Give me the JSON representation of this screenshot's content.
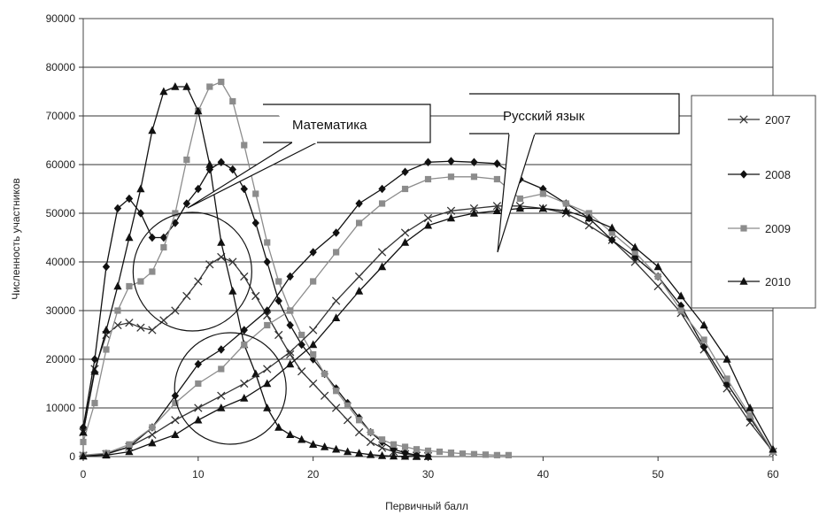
{
  "chart_data": {
    "type": "line",
    "title": "",
    "xlabel": "Первичный балл",
    "ylabel": "Численность участников",
    "xlim": [
      0,
      60
    ],
    "ylim": [
      0,
      90000
    ],
    "x_ticks": [
      0,
      10,
      20,
      30,
      40,
      50,
      60
    ],
    "y_ticks": [
      0,
      10000,
      20000,
      30000,
      40000,
      50000,
      60000,
      70000,
      80000,
      90000
    ],
    "grid": "horizontal",
    "legend_position": "right",
    "annotations": [
      "Математика",
      "Русский язык"
    ],
    "series": [
      {
        "name": "2007",
        "subject": "Математика",
        "color": "#333333",
        "marker": "x",
        "x": [
          0,
          1,
          2,
          3,
          4,
          5,
          6,
          7,
          8,
          9,
          10,
          11,
          12,
          13,
          14,
          15,
          16,
          17,
          18,
          19,
          20,
          21,
          22,
          23,
          24,
          25,
          26,
          27,
          28,
          29,
          30
        ],
        "y": [
          5000,
          18000,
          25000,
          27000,
          27500,
          26500,
          26000,
          28000,
          30000,
          33000,
          36000,
          39500,
          41000,
          40000,
          37000,
          33000,
          29000,
          25000,
          21000,
          17500,
          15000,
          12500,
          10000,
          7500,
          5000,
          3000,
          1800,
          1000,
          500,
          200,
          100
        ]
      },
      {
        "name": "2008",
        "subject": "Математика",
        "color": "#111111",
        "marker": "diamond",
        "x": [
          0,
          1,
          2,
          3,
          4,
          5,
          6,
          7,
          8,
          9,
          10,
          11,
          12,
          13,
          14,
          15,
          16,
          17,
          18,
          19,
          20,
          21,
          22,
          23,
          24,
          25,
          26,
          27,
          28,
          29,
          30
        ],
        "y": [
          6000,
          20000,
          39000,
          51000,
          53000,
          50000,
          45000,
          45000,
          48000,
          52000,
          55000,
          59000,
          60500,
          59000,
          55000,
          48000,
          40000,
          32000,
          27000,
          23000,
          20000,
          17000,
          14000,
          11000,
          8000,
          5000,
          3000,
          1500,
          800,
          300,
          100
        ]
      },
      {
        "name": "2009",
        "subject": "Математика",
        "color": "#8c8c8c",
        "marker": "square",
        "x": [
          0,
          1,
          2,
          3,
          4,
          5,
          6,
          7,
          8,
          9,
          10,
          11,
          12,
          13,
          14,
          15,
          16,
          17,
          18,
          19,
          20,
          21,
          22,
          23,
          24,
          25,
          26,
          27,
          28,
          29,
          30,
          31,
          32,
          33,
          34,
          35,
          36,
          37
        ],
        "y": [
          3000,
          11000,
          22000,
          30000,
          35000,
          36000,
          38000,
          43000,
          50000,
          61000,
          71000,
          76000,
          77000,
          73000,
          64000,
          54000,
          44000,
          36000,
          30000,
          25000,
          21000,
          17000,
          13500,
          10500,
          7500,
          5000,
          3500,
          2500,
          2000,
          1500,
          1200,
          1000,
          800,
          600,
          500,
          400,
          300,
          300
        ]
      },
      {
        "name": "2010",
        "subject": "Математика",
        "color": "#111111",
        "marker": "triangle",
        "x": [
          0,
          1,
          2,
          3,
          4,
          5,
          6,
          7,
          8,
          9,
          10,
          11,
          12,
          13,
          14,
          15,
          16,
          17,
          18,
          19,
          20,
          21,
          22,
          23,
          24,
          25,
          26,
          27,
          28,
          29,
          30
        ],
        "y": [
          5000,
          17500,
          26000,
          35000,
          45000,
          55000,
          67000,
          75000,
          76000,
          76000,
          71000,
          60000,
          44000,
          34000,
          23000,
          17000,
          10000,
          6000,
          4500,
          3500,
          2500,
          2000,
          1500,
          1000,
          700,
          400,
          200,
          100,
          50,
          20,
          10
        ]
      },
      {
        "name": "2007",
        "subject": "Русский язык",
        "color": "#333333",
        "marker": "x",
        "x": [
          0,
          2,
          4,
          6,
          8,
          10,
          12,
          14,
          16,
          18,
          20,
          22,
          24,
          26,
          28,
          30,
          32,
          34,
          36,
          38,
          40,
          42,
          44,
          46,
          48,
          50,
          52,
          54,
          56,
          58,
          60
        ],
        "y": [
          200,
          500,
          2000,
          4500,
          7500,
          10000,
          12500,
          15000,
          18000,
          21500,
          26000,
          32000,
          37000,
          42000,
          46000,
          49000,
          50500,
          51000,
          51500,
          51500,
          51000,
          50000,
          47500,
          44500,
          40000,
          35000,
          29500,
          22000,
          14000,
          7000,
          1000
        ]
      },
      {
        "name": "2008",
        "subject": "Русский язык",
        "color": "#111111",
        "marker": "diamond",
        "x": [
          0,
          2,
          4,
          6,
          8,
          10,
          12,
          14,
          16,
          18,
          20,
          22,
          24,
          26,
          28,
          30,
          32,
          34,
          36,
          38,
          40,
          42,
          44,
          46,
          48,
          50,
          52,
          54,
          56,
          58,
          60
        ],
        "y": [
          200,
          600,
          2000,
          6000,
          12500,
          19000,
          22000,
          26000,
          30000,
          37000,
          42000,
          46000,
          52000,
          55000,
          58500,
          60500,
          60700,
          60500,
          60200,
          57000,
          55000,
          52000,
          49000,
          44500,
          41000,
          37000,
          31000,
          22500,
          15000,
          8000,
          1000
        ]
      },
      {
        "name": "2009",
        "subject": "Русский язык",
        "color": "#8c8c8c",
        "marker": "square",
        "x": [
          0,
          2,
          4,
          6,
          8,
          10,
          12,
          14,
          16,
          18,
          20,
          22,
          24,
          26,
          28,
          30,
          32,
          34,
          36,
          38,
          40,
          42,
          44,
          46,
          48,
          50,
          52,
          54,
          56,
          58,
          60
        ],
        "y": [
          300,
          700,
          2500,
          6000,
          11000,
          15000,
          18000,
          23000,
          27000,
          30000,
          36000,
          42000,
          48000,
          52000,
          55000,
          57000,
          57500,
          57500,
          57000,
          53000,
          54000,
          52000,
          50000,
          46000,
          42000,
          37000,
          30000,
          24000,
          16000,
          8500,
          1000
        ]
      },
      {
        "name": "2010",
        "subject": "Русский язык",
        "color": "#111111",
        "marker": "triangle",
        "x": [
          0,
          2,
          4,
          6,
          8,
          10,
          12,
          14,
          16,
          18,
          20,
          22,
          24,
          26,
          28,
          30,
          32,
          34,
          36,
          38,
          40,
          42,
          44,
          46,
          48,
          50,
          52,
          54,
          56,
          58,
          60
        ],
        "y": [
          100,
          300,
          1000,
          2800,
          4500,
          7500,
          10000,
          12000,
          15000,
          19000,
          23000,
          28500,
          34000,
          39000,
          44000,
          47500,
          49000,
          50000,
          50500,
          51000,
          51000,
          50500,
          49000,
          47000,
          43000,
          39000,
          33000,
          27000,
          20000,
          10000,
          1500
        ]
      }
    ]
  }
}
